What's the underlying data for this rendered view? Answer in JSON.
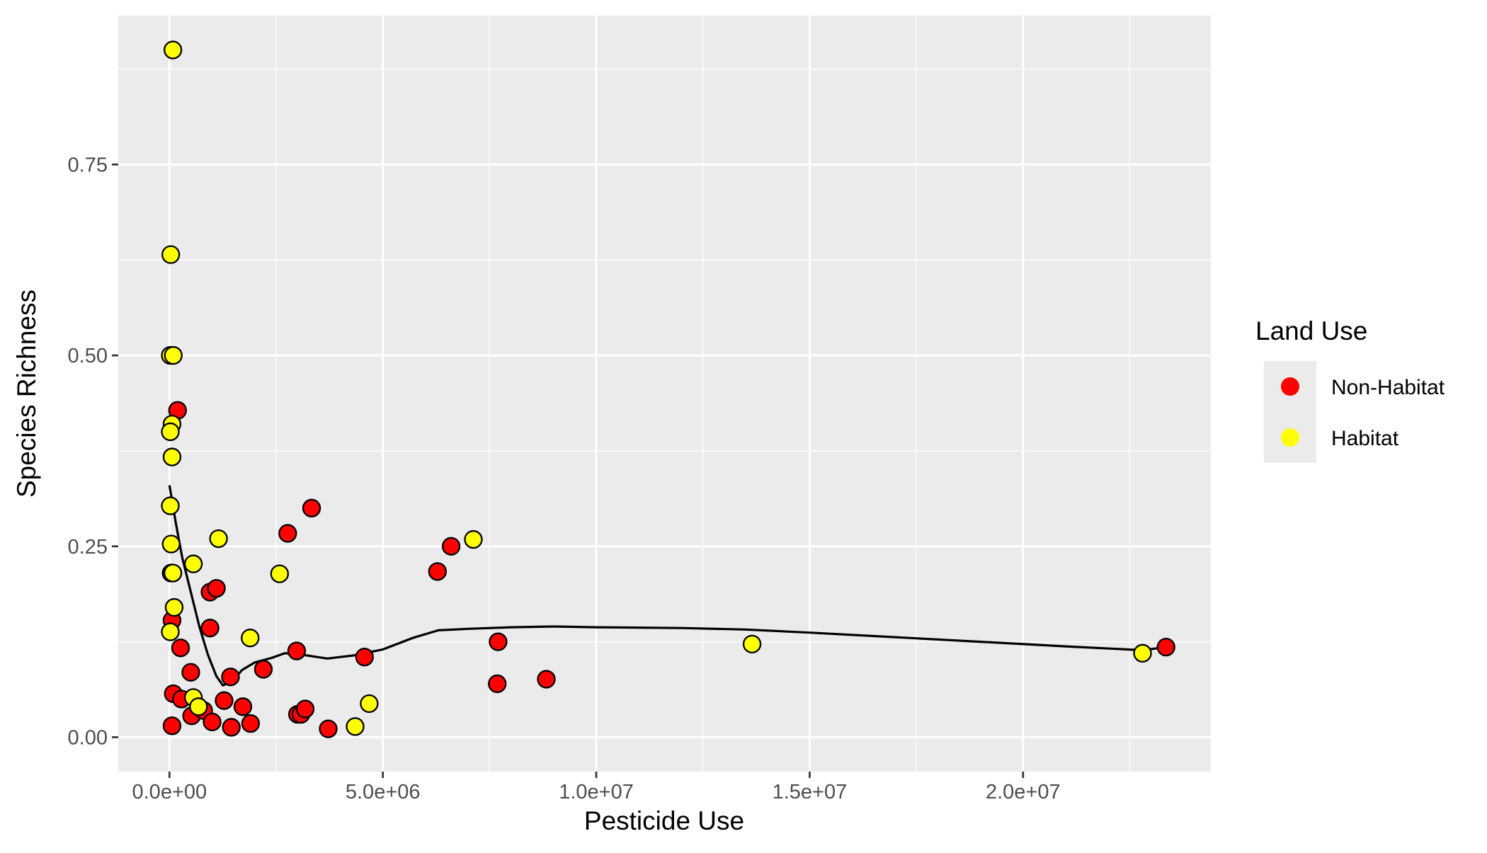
{
  "chart_data": {
    "type": "scatter",
    "title": "",
    "xlabel": "Pesticide Use",
    "ylabel": "Species Richness",
    "xlim": [
      -1200000,
      24400000
    ],
    "ylim": [
      -0.045,
      0.945
    ],
    "x_ticks": [
      {
        "value": 0,
        "label": "0.0e+00"
      },
      {
        "value": 5000000,
        "label": "5.0e+06"
      },
      {
        "value": 10000000,
        "label": "1.0e+07"
      },
      {
        "value": 15000000,
        "label": "1.5e+07"
      },
      {
        "value": 20000000,
        "label": "2.0e+07"
      }
    ],
    "y_ticks": [
      {
        "value": 0,
        "label": "0.00"
      },
      {
        "value": 0.25,
        "label": "0.25"
      },
      {
        "value": 0.5,
        "label": "0.50"
      },
      {
        "value": 0.75,
        "label": "0.75"
      }
    ],
    "grid": true,
    "legend": {
      "title": "Land Use",
      "position": "right",
      "entries": [
        {
          "label": "Non-Habitat",
          "color": "#ff0000"
        },
        {
          "label": "Habitat",
          "color": "#ffff00"
        }
      ]
    },
    "series": [
      {
        "name": "Non-Habitat",
        "color": "#ff0000",
        "points": [
          [
            190000,
            0.428
          ],
          [
            60000,
            0.153
          ],
          [
            90000,
            0.057
          ],
          [
            60000,
            0.015
          ],
          [
            260000,
            0.117
          ],
          [
            280000,
            0.05
          ],
          [
            500000,
            0.085
          ],
          [
            520000,
            0.028
          ],
          [
            800000,
            0.035
          ],
          [
            950000,
            0.19
          ],
          [
            1100000,
            0.195
          ],
          [
            950000,
            0.143
          ],
          [
            1000000,
            0.02
          ],
          [
            1280000,
            0.048
          ],
          [
            1430000,
            0.079
          ],
          [
            1450000,
            0.013
          ],
          [
            1720000,
            0.04
          ],
          [
            1900000,
            0.018
          ],
          [
            2200000,
            0.089
          ],
          [
            2770000,
            0.267
          ],
          [
            2980000,
            0.113
          ],
          [
            3000000,
            0.03
          ],
          [
            3080000,
            0.03
          ],
          [
            3180000,
            0.037
          ],
          [
            3330000,
            0.3
          ],
          [
            3720000,
            0.011
          ],
          [
            4570000,
            0.105
          ],
          [
            6280000,
            0.217
          ],
          [
            6600000,
            0.25
          ],
          [
            7700000,
            0.125
          ],
          [
            7680000,
            0.07
          ],
          [
            8830000,
            0.076
          ],
          [
            23350000,
            0.118
          ]
        ]
      },
      {
        "name": "Habitat",
        "color": "#ffff00",
        "points": [
          [
            80000,
            0.9
          ],
          [
            30000,
            0.632
          ],
          [
            20000,
            0.5
          ],
          [
            90000,
            0.5
          ],
          [
            60000,
            0.41
          ],
          [
            20000,
            0.4
          ],
          [
            60000,
            0.367
          ],
          [
            20000,
            0.303
          ],
          [
            40000,
            0.253
          ],
          [
            40000,
            0.215
          ],
          [
            80000,
            0.215
          ],
          [
            110000,
            0.17
          ],
          [
            20000,
            0.138
          ],
          [
            560000,
            0.227
          ],
          [
            1150000,
            0.26
          ],
          [
            2580000,
            0.214
          ],
          [
            1890000,
            0.13
          ],
          [
            560000,
            0.052
          ],
          [
            680000,
            0.04
          ],
          [
            4350000,
            0.014
          ],
          [
            4680000,
            0.044
          ],
          [
            7120000,
            0.259
          ],
          [
            13650000,
            0.122
          ],
          [
            22800000,
            0.11
          ]
        ]
      }
    ],
    "trend_line": {
      "color": "#000000",
      "points": [
        [
          0,
          0.33
        ],
        [
          150000,
          0.28
        ],
        [
          300000,
          0.235
        ],
        [
          500000,
          0.19
        ],
        [
          700000,
          0.145
        ],
        [
          900000,
          0.108
        ],
        [
          1100000,
          0.08
        ],
        [
          1250000,
          0.068
        ],
        [
          1450000,
          0.072
        ],
        [
          1700000,
          0.088
        ],
        [
          2000000,
          0.098
        ],
        [
          2400000,
          0.104
        ],
        [
          2700000,
          0.11
        ],
        [
          3100000,
          0.108
        ],
        [
          3700000,
          0.103
        ],
        [
          4300000,
          0.107
        ],
        [
          5000000,
          0.115
        ],
        [
          5700000,
          0.13
        ],
        [
          6300000,
          0.14
        ],
        [
          7000000,
          0.142
        ],
        [
          8000000,
          0.144
        ],
        [
          9000000,
          0.145
        ],
        [
          10000000,
          0.144
        ],
        [
          12000000,
          0.143
        ],
        [
          13500000,
          0.141
        ],
        [
          15000000,
          0.137
        ],
        [
          17000000,
          0.131
        ],
        [
          19000000,
          0.125
        ],
        [
          21000000,
          0.119
        ],
        [
          22800000,
          0.114
        ],
        [
          23350000,
          0.118
        ]
      ]
    }
  }
}
